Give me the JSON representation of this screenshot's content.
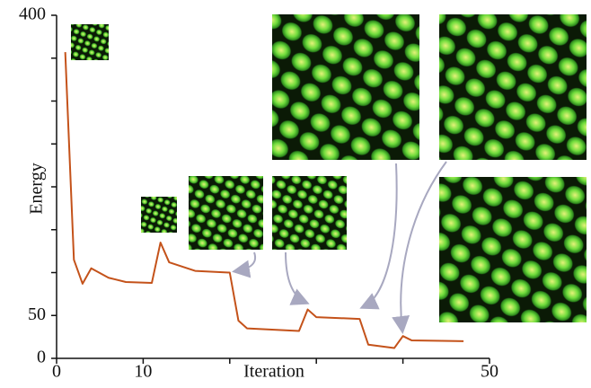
{
  "chart_data": {
    "type": "line",
    "xlabel": "Iteration",
    "ylabel": "Energy",
    "x": [
      1,
      2,
      3,
      4,
      6,
      8,
      11,
      12,
      13,
      16,
      20,
      21,
      22,
      28,
      29,
      30,
      35,
      36,
      39,
      40,
      41,
      47
    ],
    "values": [
      357,
      115,
      87,
      105,
      94,
      89,
      88,
      135,
      112,
      102,
      100,
      44,
      35,
      32,
      57,
      48,
      46,
      16,
      12,
      26,
      21,
      20
    ],
    "color": "#c4521a",
    "xlim": [
      0,
      50
    ],
    "ylim": [
      0,
      400
    ],
    "xticks": [
      0,
      10,
      {
        "value": 20,
        "label": null
      },
      {
        "value": 30,
        "label": null
      },
      {
        "value": 40,
        "label": null
      },
      50
    ],
    "yticks": [
      0,
      50,
      {
        "value": 100,
        "label": null
      },
      {
        "value": 150,
        "label": null
      },
      {
        "value": 200,
        "label": null
      },
      {
        "value": 250,
        "label": null
      },
      {
        "value": 300,
        "label": null
      },
      {
        "value": 350,
        "label": null
      },
      400
    ]
  }
}
